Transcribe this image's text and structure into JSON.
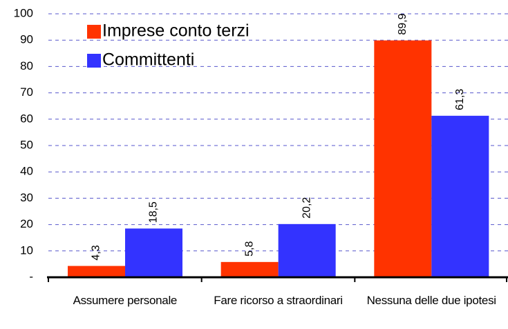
{
  "chart_data": {
    "type": "bar",
    "categories": [
      "Assumere personale",
      "Fare ricorso a straordinari",
      "Nessuna delle due ipotesi"
    ],
    "series": [
      {
        "name": "Imprese conto terzi",
        "color": "#ff3300",
        "values": [
          4.3,
          5.8,
          89.9
        ],
        "value_labels": [
          "4,3",
          "5,8",
          "89,9"
        ]
      },
      {
        "name": "Committenti",
        "color": "#3333ff",
        "values": [
          18.5,
          20.2,
          61.3
        ],
        "value_labels": [
          "18,5",
          "20,2",
          "61,3"
        ]
      }
    ],
    "ylim": [
      0,
      100
    ],
    "yticks": [
      {
        "value": 0,
        "label": "-"
      },
      10,
      20,
      30,
      40,
      50,
      60,
      70,
      80,
      90,
      100
    ],
    "grid": true,
    "legend": "upper left"
  }
}
